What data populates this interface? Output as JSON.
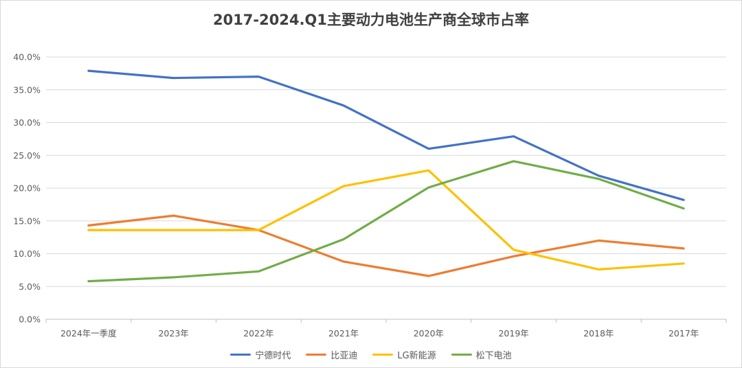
{
  "chart_data": {
    "type": "line",
    "title": "2017-2024.Q1主要动力电池生产商全球市占率",
    "xlabel": "",
    "ylabel": "",
    "categories": [
      "2024年一季度",
      "2023年",
      "2022年",
      "2021年",
      "2020年",
      "2019年",
      "2018年",
      "2017年"
    ],
    "ylim": [
      0,
      40
    ],
    "yticks": [
      0,
      5,
      10,
      15,
      20,
      25,
      30,
      35,
      40
    ],
    "ytick_labels": [
      "0.0%",
      "5.0%",
      "10.0%",
      "15.0%",
      "20.0%",
      "25.0%",
      "30.0%",
      "35.0%",
      "40.0%"
    ],
    "grid": true,
    "legend_position": "bottom",
    "series": [
      {
        "name": "宁德时代",
        "color": "#4472c4",
        "values": [
          37.9,
          36.8,
          37.0,
          32.6,
          26.0,
          27.9,
          21.9,
          18.2
        ]
      },
      {
        "name": "比亚迪",
        "color": "#ed7d31",
        "values": [
          14.3,
          15.8,
          13.6,
          8.8,
          6.6,
          9.6,
          12.0,
          10.8
        ]
      },
      {
        "name": "LG新能源",
        "color": "#ffc000",
        "values": [
          13.6,
          13.6,
          13.6,
          20.3,
          22.7,
          10.6,
          7.6,
          8.5
        ]
      },
      {
        "name": "松下电池",
        "color": "#70ad47",
        "values": [
          5.8,
          6.4,
          7.3,
          12.2,
          20.1,
          24.1,
          21.4,
          16.9
        ]
      }
    ]
  }
}
